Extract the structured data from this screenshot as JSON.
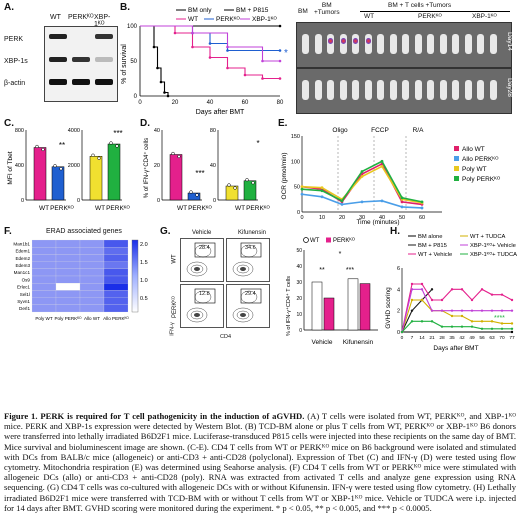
{
  "panels": {
    "A": {
      "letter": "A.",
      "columns": [
        "WT",
        "PERKᴷᴼ",
        "XBP-1ᴷᴼ"
      ],
      "rows": [
        "PERK",
        "XBP-1s",
        "β-actin"
      ]
    },
    "B": {
      "letter": "B.",
      "ylabel": "% of survival",
      "xlabel": "Days after BMT",
      "legend": [
        "BM only",
        "BM + P815",
        "WT",
        "PERKᴷᴼ",
        "XBP-1ᴷᴼ"
      ],
      "colors": [
        "#000000",
        "#000000",
        "#e4208c",
        "#1f5fd0",
        "#c040d8"
      ]
    },
    "B_images": {
      "col_bm": "BM",
      "col_bm_tumors": "BM\n+Tumors",
      "group_header": "BM + T cells +Tumors",
      "cols": [
        "WT",
        "PERKᴷᴼ",
        "XBP-1ᴷᴼ"
      ],
      "rows": [
        "Day14",
        "Day28"
      ]
    },
    "C": {
      "letter": "C.",
      "ylabel": "MFI of Tbet",
      "xlabels": [
        "WT",
        "PERKᴷᴼ"
      ],
      "stars1": "**",
      "stars2": "***"
    },
    "D": {
      "letter": "D.",
      "ylabel": "% of IFN-γ⁺CD4⁺ cells",
      "xlabels": [
        "WT",
        "PERKᴷᴼ"
      ],
      "stars1": "***",
      "stars2": "*"
    },
    "E": {
      "letter": "E.",
      "ylabel": "OCR (pmol/min)",
      "xlabel": "Time (minutes)",
      "markers": [
        "Oligo",
        "FCCP",
        "R/A"
      ],
      "legend": [
        "Allo WT",
        "Allo PERKᴷᴼ",
        "Poly WT",
        "Poly PERKᴷᴼ"
      ],
      "colors": [
        "#e0206a",
        "#4a9ee8",
        "#e8c820",
        "#20b040"
      ]
    },
    "F": {
      "letter": "F.",
      "title": "ERAD associated genes",
      "genes": [
        "Man1b1",
        "Edem1",
        "Edem2",
        "Edem3",
        "Man1c1",
        "Os9",
        "Erlec1",
        "Sel1l",
        "Syvn1",
        "Derl1"
      ],
      "cols": [
        "Poly WT",
        "Poly PERKᴷᴼ",
        "Allo WT",
        "Allo PERKᴷᴼ"
      ],
      "scale": [
        "2.0",
        "1.5",
        "1.0",
        "0.5"
      ]
    },
    "G": {
      "letter": "G.",
      "vehicle": "Vehicle",
      "kif": "Kifunensin",
      "row_wt": "WT",
      "row_ko": "PERKᴷᴼ",
      "yaxis": "IFN-γ",
      "xaxis": "CD4",
      "gates": [
        "28.4",
        "34.6",
        "12.8",
        "29.4"
      ],
      "legend": [
        "WT",
        "PERKᴷᴼ"
      ],
      "bar_ylabel": "% of IFN-γ⁺CD4⁺ T cells",
      "bar_x": [
        "Vehicle",
        "Kifunensin"
      ],
      "stars": [
        "**",
        "***",
        "*"
      ]
    },
    "H": {
      "letter": "H.",
      "ylabel": "GVHD scoring",
      "xlabel": "Days after BMT",
      "legend": [
        "BM alone",
        "BM + P815",
        "WT + Vehicle",
        "WT + TUDCA",
        "XBP-1ᴷᴼ+ Vehicle",
        "XBP-1ᴷᴼ+ TUDCA"
      ],
      "xticks": [
        "0",
        "7",
        "14",
        "21",
        "28",
        "35",
        "42",
        "49",
        "56",
        "63",
        "70",
        "77"
      ],
      "yticks": [
        "0",
        "2",
        "4",
        "6"
      ],
      "stars": "****"
    }
  },
  "caption": {
    "title": "Figure 1. PERK is required for T cell pathogenicity in the induction of aGVHD.",
    "text": " (A) T cells were isolated from WT, PERKᴷᴼ, and XBP-1ᴷᴼ mice. PERK and XBP-1s expression were detected by Western Blot. (B) TCD-BM alone or plus T cells from WT, PERKᴷᴼ or XBP-1ᴷᴼ B6 donors were transferred into lethally irradiated B6D2F1 mice. Luciferase-transduced P815 cells were injected into these recipients on the same day of BMT. Mice survival and bioluminescent image are shown. (C-E). CD4 T cells from WT or PERKᴷᴼ mice on B6 background were isolated and stimulated with DCs from BALB/c mice (allogeneic) or anti-CD3 + anti-CD28 (polyclonal). Expression of Tbet (C) and IFN-γ (D) were tested using flow cytometry. Mitochondria respiration (E) was determined using Seahorse analysis. (F) CD4 T cells from WT or PERKᴷᴼ mice were stimulated with allogeneic DCs (allo) or anti-CD3 + anti-CD28 (poly). RNA was extracted from activated T cells and analyze gene expression using RNA sequencing. (G) CD4 T cells was co-cultured with allogeneic DCs with or without Kifunensin. IFN-γ were tested using flow cytometry. (H) Lethally irradiated B6D2F1 mice were transferred with TCD-BM with or without T cells from WT or XBP-1ᴷᴼ mice. Vehicle or TUDCA were i.p. injected for 14 days after BMT. GVHD scoring were monitored during the experiment. * p < 0.05, ** p < 0.005, and *** p < 0.0005."
  },
  "chart_data": [
    {
      "type": "line",
      "panel": "B",
      "title": "",
      "xlabel": "Days after BMT",
      "ylabel": "% of survival",
      "xlim": [
        0,
        80
      ],
      "ylim": [
        0,
        100
      ],
      "series": [
        {
          "name": "BM only",
          "x": [
            0,
            80
          ],
          "y": [
            100,
            100
          ]
        },
        {
          "name": "BM + P815",
          "x": [
            0,
            8,
            10,
            12,
            14,
            16
          ],
          "y": [
            100,
            70,
            40,
            20,
            5,
            0
          ]
        },
        {
          "name": "WT",
          "x": [
            0,
            20,
            30,
            40,
            50,
            60,
            70,
            80
          ],
          "y": [
            100,
            90,
            70,
            55,
            40,
            30,
            25,
            25
          ]
        },
        {
          "name": "PERKᴷᴼ",
          "x": [
            0,
            30,
            40,
            50,
            80
          ],
          "y": [
            100,
            90,
            75,
            65,
            65
          ]
        },
        {
          "name": "XBP-1ᴷᴼ",
          "x": [
            0,
            30,
            50,
            70,
            80
          ],
          "y": [
            100,
            90,
            70,
            50,
            50
          ]
        }
      ]
    },
    {
      "type": "bar",
      "panel": "C",
      "ylabel": "MFI of Tbet",
      "categories": [
        "WT",
        "PERKᴷᴼ"
      ],
      "groups": [
        {
          "values": [
            600,
            380
          ],
          "ylim": [
            0,
            800
          ]
        },
        {
          "values": [
            2500,
            3200
          ],
          "ylim": [
            0,
            4000
          ]
        }
      ]
    },
    {
      "type": "bar",
      "panel": "D",
      "ylabel": "% of IFN-γ⁺CD4⁺ cells",
      "categories": [
        "WT",
        "PERKᴷᴼ"
      ],
      "groups": [
        {
          "values": [
            26,
            4
          ],
          "ylim": [
            0,
            40
          ]
        },
        {
          "values": [
            16,
            22
          ],
          "ylim": [
            0,
            80
          ]
        }
      ]
    },
    {
      "type": "line",
      "panel": "E",
      "xlabel": "Time (minutes)",
      "ylabel": "OCR (pmol/min)",
      "xlim": [
        0,
        70
      ],
      "ylim": [
        0,
        150
      ],
      "series": [
        {
          "name": "Allo WT",
          "x": [
            0,
            10,
            20,
            30,
            40,
            50,
            60
          ],
          "y": [
            50,
            45,
            20,
            75,
            95,
            20,
            15
          ]
        },
        {
          "name": "Allo PERKᴷᴼ",
          "x": [
            0,
            10,
            20,
            30,
            40,
            50,
            60
          ],
          "y": [
            35,
            30,
            15,
            20,
            22,
            10,
            8
          ]
        },
        {
          "name": "Poly WT",
          "x": [
            0,
            10,
            20,
            30,
            40,
            50,
            60
          ],
          "y": [
            50,
            48,
            25,
            70,
            90,
            25,
            18
          ]
        },
        {
          "name": "Poly PERKᴷᴼ",
          "x": [
            0,
            10,
            20,
            30,
            40,
            50,
            60
          ],
          "y": [
            45,
            42,
            22,
            80,
            100,
            28,
            20
          ]
        }
      ]
    },
    {
      "type": "heatmap",
      "panel": "F",
      "rows": [
        "Man1b1",
        "Edem1",
        "Edem2",
        "Edem3",
        "Man1c1",
        "Os9",
        "Erlec1",
        "Sel1l",
        "Syvn1",
        "Derl1"
      ],
      "cols": [
        "Poly WT",
        "Poly PERKᴷᴼ",
        "Allo WT",
        "Allo PERKᴷᴼ"
      ],
      "values": [
        [
          1.0,
          1.0,
          1.0,
          1.6
        ],
        [
          1.0,
          1.0,
          1.0,
          1.4
        ],
        [
          1.0,
          1.0,
          1.0,
          1.5
        ],
        [
          1.0,
          1.0,
          1.0,
          1.3
        ],
        [
          1.0,
          1.0,
          1.0,
          1.6
        ],
        [
          1.0,
          1.0,
          1.0,
          1.6
        ],
        [
          1.0,
          0.0,
          1.0,
          2.0
        ],
        [
          1.0,
          1.0,
          1.0,
          1.5
        ],
        [
          1.0,
          1.0,
          1.0,
          1.5
        ],
        [
          1.0,
          1.0,
          1.0,
          1.5
        ]
      ]
    },
    {
      "type": "bar",
      "panel": "G",
      "ylabel": "% of IFN-γ⁺CD4⁺ T cells",
      "categories": [
        "Vehicle",
        "Kifunensin"
      ],
      "series": [
        {
          "name": "WT",
          "values": [
            30,
            32
          ]
        },
        {
          "name": "PERKᴷᴼ",
          "values": [
            20,
            29
          ]
        }
      ],
      "ylim": [
        0,
        50
      ]
    },
    {
      "type": "line",
      "panel": "H",
      "xlabel": "Days after BMT",
      "ylabel": "GVHD scoring",
      "xlim": [
        0,
        77
      ],
      "ylim": [
        0,
        6
      ],
      "series": [
        {
          "name": "BM alone",
          "x": [
            0,
            77
          ],
          "y": [
            0,
            0
          ]
        },
        {
          "name": "BM + P815",
          "x": [
            0,
            7,
            14,
            21
          ],
          "y": [
            0,
            2,
            3,
            4
          ]
        },
        {
          "name": "WT + Vehicle",
          "x": [
            0,
            7,
            14,
            21,
            28,
            35,
            42,
            49,
            56,
            63,
            70,
            77
          ],
          "y": [
            0,
            4.5,
            4.5,
            3,
            3,
            4,
            4,
            3,
            4,
            3.5,
            3.5,
            3
          ]
        },
        {
          "name": "WT + TUDCA",
          "x": [
            0,
            7,
            14,
            21,
            28,
            35,
            42,
            49,
            56,
            63,
            70,
            77
          ],
          "y": [
            0,
            3,
            3,
            2,
            2,
            1.5,
            1.5,
            1,
            1,
            1,
            0.8,
            0.8
          ]
        },
        {
          "name": "XBP-1ᴷᴼ+ Vehicle",
          "x": [
            0,
            7,
            14,
            21,
            28,
            35,
            42,
            49,
            56,
            63,
            70,
            77
          ],
          "y": [
            0,
            4,
            4,
            2,
            2,
            2,
            2,
            2,
            2,
            2,
            2,
            2
          ]
        },
        {
          "name": "XBP-1ᴷᴼ+ TUDCA",
          "x": [
            0,
            7,
            14,
            21,
            28,
            35,
            42,
            49,
            56,
            63,
            70,
            77
          ],
          "y": [
            0,
            1,
            1,
            1,
            0.5,
            0.5,
            0.5,
            0.5,
            0.3,
            0.3,
            0.3,
            0.3
          ]
        }
      ]
    }
  ]
}
